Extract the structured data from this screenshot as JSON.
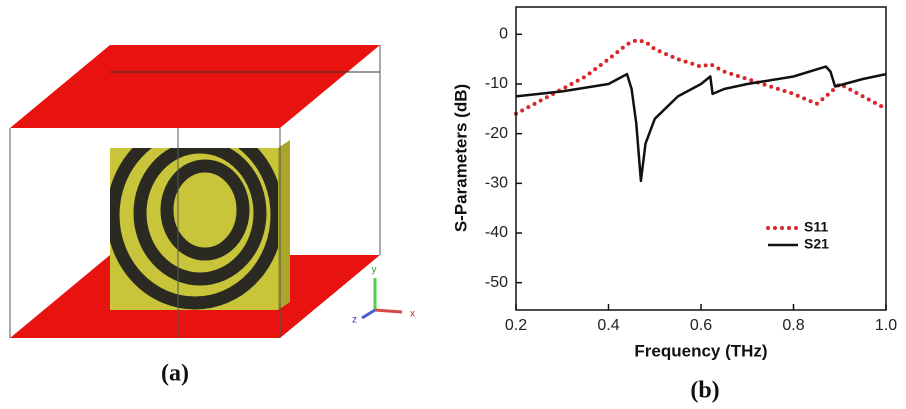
{
  "figure": {
    "panel_labels": [
      "(a)",
      "(b)"
    ],
    "triad_axes": [
      "x",
      "y",
      "z"
    ]
  },
  "chart_data": {
    "type": "line",
    "xlabel": "Frequency (THz)",
    "ylabel": "S-Parameters (dB)",
    "xlim": [
      0.2,
      1.0
    ],
    "ylim": [
      -55.5,
      5.5
    ],
    "xticks": [
      0.2,
      0.4,
      0.6,
      0.8,
      {
        "value": 1,
        "label": "1.0"
      }
    ],
    "yticks": [
      0,
      -10,
      -20,
      -30,
      -40,
      -50
    ],
    "legend": "lower right",
    "series": [
      {
        "name": "S11",
        "color": "#d9262a",
        "style": "dotted",
        "x": [
          0.2,
          0.25,
          0.3,
          0.35,
          0.4,
          0.44,
          0.46,
          0.48,
          0.5,
          0.55,
          0.6,
          0.62,
          0.65,
          0.7,
          0.75,
          0.8,
          0.85,
          0.87,
          0.9,
          0.95,
          1.0
        ],
        "values": [
          -16,
          -13.5,
          -11,
          -8.5,
          -5,
          -2,
          -1.2,
          -1.5,
          -3,
          -5,
          -6.5,
          -6,
          -7.5,
          -9,
          -10.5,
          -12,
          -14,
          -12.5,
          -10,
          -12.5,
          -15
        ]
      },
      {
        "name": "S21",
        "color": "#111111",
        "style": "solid",
        "x": [
          0.2,
          0.3,
          0.4,
          0.44,
          0.45,
          0.46,
          0.47,
          0.48,
          0.5,
          0.55,
          0.6,
          0.62,
          0.625,
          0.65,
          0.7,
          0.8,
          0.87,
          0.88,
          0.89,
          0.95,
          1.0
        ],
        "values": [
          -12.5,
          -11.5,
          -10,
          -8,
          -11,
          -18,
          -29.5,
          -22,
          -17,
          -12.5,
          -10,
          -8.5,
          -12,
          -11,
          -10,
          -8.5,
          -6.5,
          -7.5,
          -10.5,
          -9,
          -8
        ]
      }
    ]
  }
}
